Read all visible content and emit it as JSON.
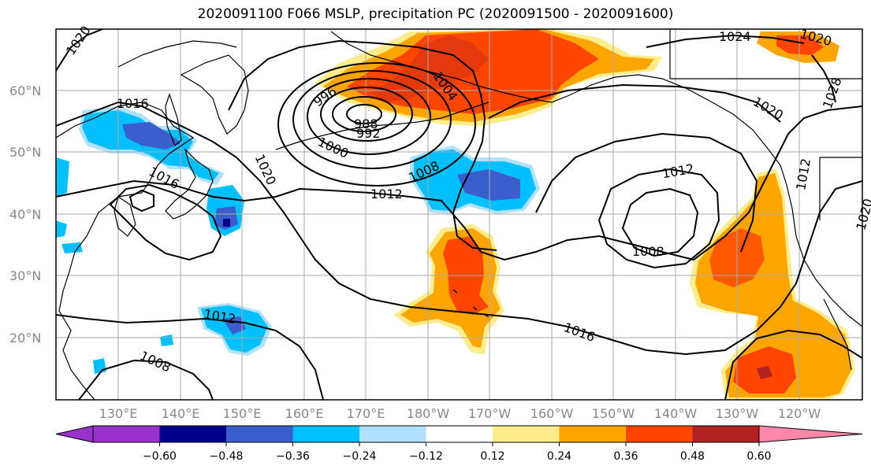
{
  "title": "2020091100 F066 MSLP, precipitation PC (2020091500 - 2020091600)",
  "latitudes": [
    "60°N",
    "50°N",
    "40°N",
    "30°N",
    "20°N"
  ],
  "longitudes": [
    "130°E",
    "140°E",
    "150°E",
    "160°E",
    "170°E",
    "180°W",
    "170°W",
    "160°W",
    "150°W",
    "140°W",
    "130°W",
    "120°W"
  ],
  "contour_labels": [
    "1020",
    "1016",
    "1016",
    "996",
    "988",
    "992",
    "1000",
    "1004",
    "1020",
    "1008",
    "1012",
    "1012",
    "1024",
    "1020",
    "1028",
    "1020",
    "1012",
    "1008",
    "1020",
    "1012",
    "1016",
    "1008"
  ],
  "colorbar": {
    "ticks": [
      "−0.60",
      "−0.48",
      "−0.36",
      "−0.24",
      "−0.12",
      "0.12",
      "0.24",
      "0.36",
      "0.48",
      "0.60"
    ],
    "colors": [
      "#9932cc",
      "#00008b",
      "#3a5fcd",
      "#00bfff",
      "#b0e2ff",
      "#ffffff",
      "#ffec8b",
      "#ffa500",
      "#ff4500",
      "#b22222",
      "#ff88aa"
    ]
  },
  "palette": {
    "blue_light": "#b0e2ff",
    "blue": "#00bfff",
    "blue_mid": "#3a5fcd",
    "blue_dark": "#00008b",
    "yellow": "#ffec8b",
    "orange": "#ffa500",
    "red": "#ff4500",
    "dark_red": "#b22222"
  }
}
